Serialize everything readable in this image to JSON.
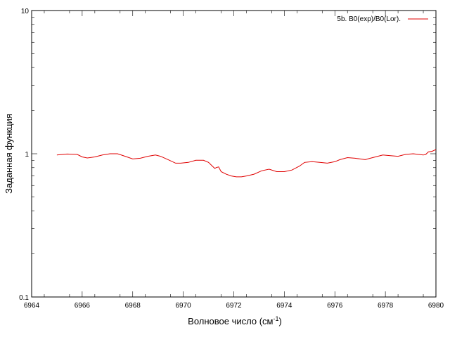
{
  "chart_data": {
    "type": "line",
    "title": "",
    "xlabel": "Волновое число (см",
    "xlabel_superscript": "-1",
    "xlabel_suffix": ")",
    "ylabel": "Заданная функция",
    "xlim": [
      6964,
      6980
    ],
    "ylim": [
      0.1,
      10
    ],
    "y_scale": "log",
    "grid": false,
    "legend_position": "top-right",
    "x_ticks": [
      "6964",
      "6966",
      "6968",
      "6970",
      "6972",
      "6974",
      "6976",
      "6978",
      "6980"
    ],
    "y_ticks": [
      "0.1",
      "1",
      "10"
    ],
    "series": [
      {
        "name": "5b. B0(exp)/B0(Lor).",
        "color": "#e00000",
        "x": [
          6965.0,
          6965.4,
          6965.8,
          6966.0,
          6966.2,
          6966.5,
          6966.8,
          6967.1,
          6967.4,
          6967.7,
          6968.0,
          6968.3,
          6968.6,
          6968.9,
          6969.1,
          6969.4,
          6969.7,
          6969.9,
          6970.2,
          6970.5,
          6970.8,
          6971.0,
          6971.15,
          6971.25,
          6971.3,
          6971.4,
          6971.5,
          6971.7,
          6971.9,
          6972.1,
          6972.3,
          6972.5,
          6972.8,
          6973.1,
          6973.4,
          6973.7,
          6974.0,
          6974.3,
          6974.6,
          6974.8,
          6975.1,
          6975.4,
          6975.7,
          6976.0,
          6976.2,
          6976.5,
          6976.8,
          6977.0,
          6977.2,
          6977.4,
          6977.7,
          6977.9,
          6978.2,
          6978.5,
          6978.8,
          6979.1,
          6979.3,
          6979.5,
          6979.6,
          6979.7,
          6979.85,
          6980.0
        ],
        "y": [
          0.98,
          0.995,
          0.99,
          0.95,
          0.935,
          0.95,
          0.98,
          1.0,
          1.0,
          0.96,
          0.92,
          0.93,
          0.96,
          0.98,
          0.96,
          0.91,
          0.86,
          0.86,
          0.87,
          0.9,
          0.9,
          0.87,
          0.82,
          0.79,
          0.8,
          0.81,
          0.75,
          0.72,
          0.7,
          0.69,
          0.69,
          0.7,
          0.72,
          0.76,
          0.78,
          0.75,
          0.75,
          0.77,
          0.82,
          0.87,
          0.88,
          0.87,
          0.86,
          0.88,
          0.91,
          0.94,
          0.93,
          0.92,
          0.91,
          0.93,
          0.96,
          0.98,
          0.97,
          0.96,
          0.99,
          1.0,
          0.99,
          0.98,
          0.99,
          1.03,
          1.04,
          1.07
        ]
      }
    ]
  }
}
